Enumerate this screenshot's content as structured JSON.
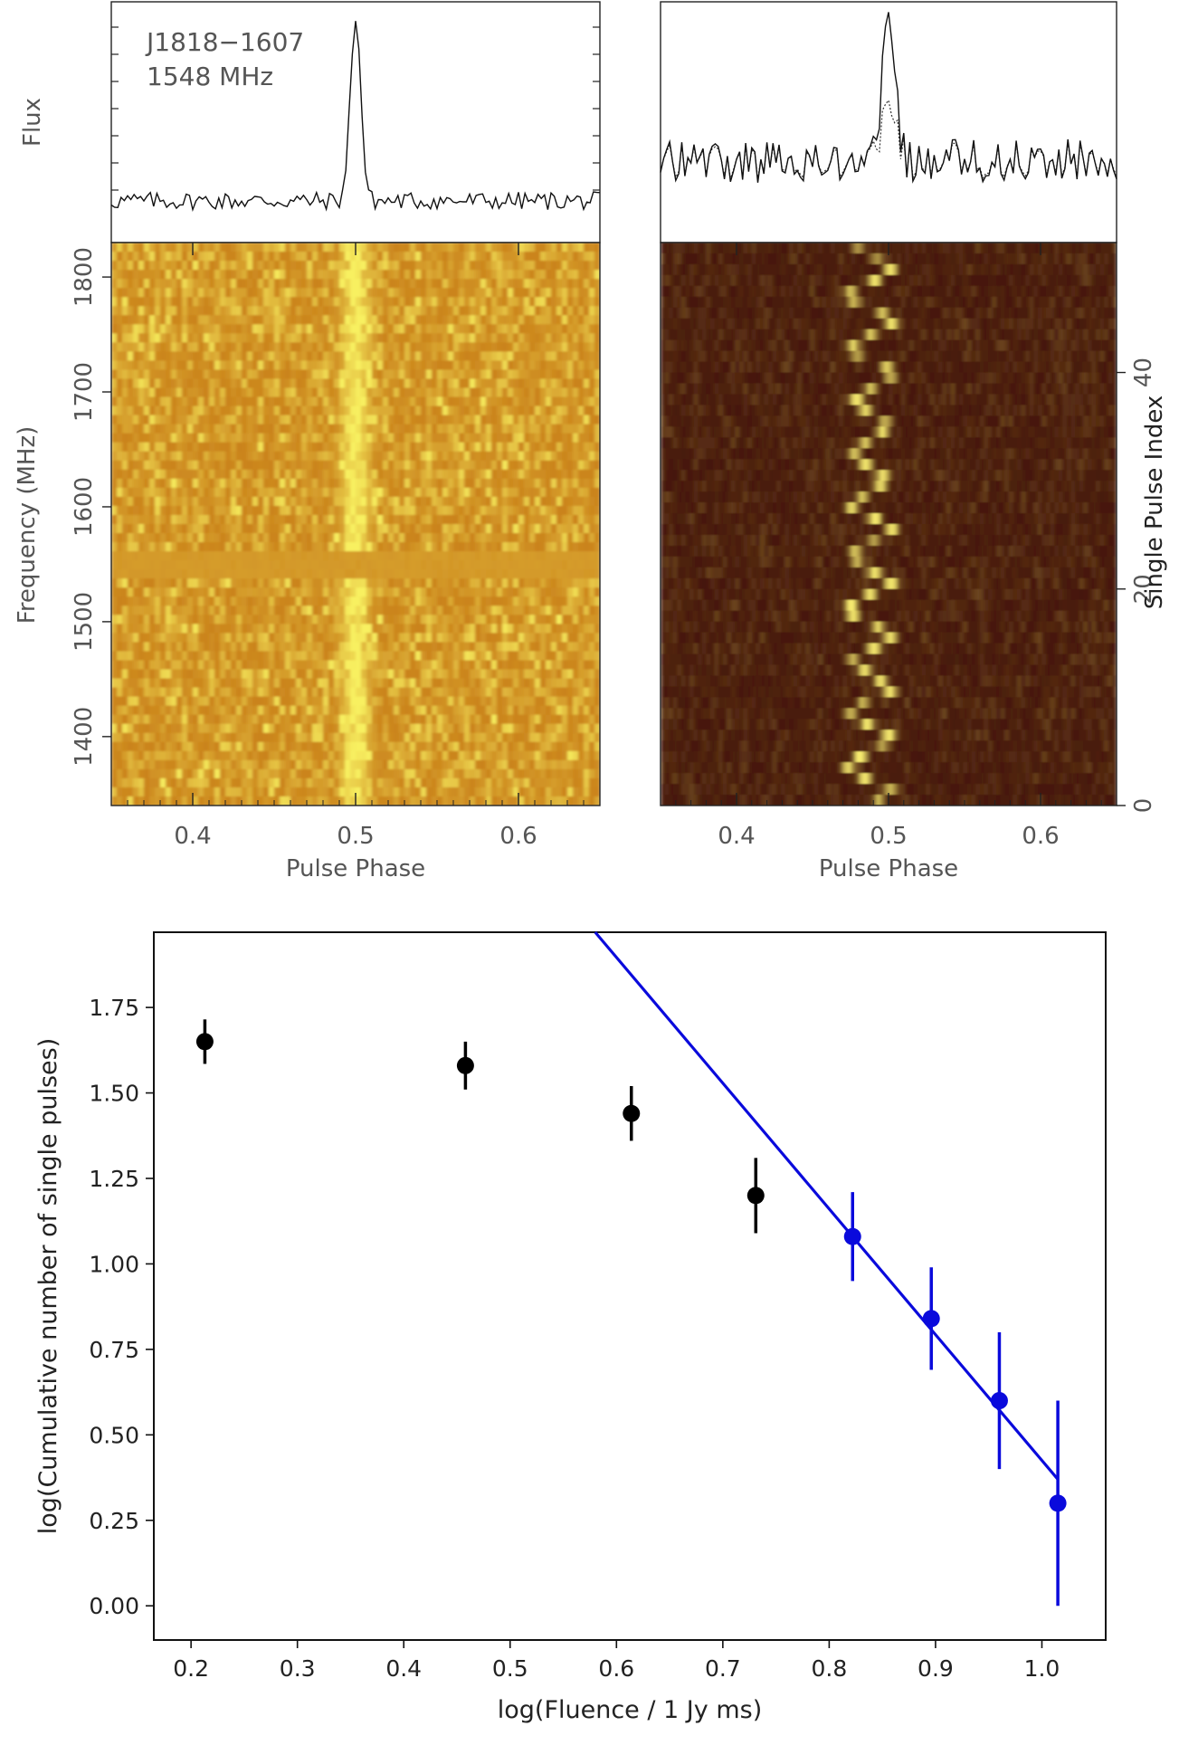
{
  "chart_data": [
    {
      "type": "heatmap",
      "panel": "top-left",
      "annotation": [
        "J1818−1607",
        "1548 MHz"
      ],
      "profile_ylabel": "Flux",
      "xlabel": "Pulse Phase",
      "ylabel": "Frequency (MHz)",
      "xlim": [
        0.35,
        0.65
      ],
      "ylim": [
        1340,
        1830
      ],
      "x_ticks": [
        0.4,
        0.5,
        0.6
      ],
      "x_tick_labels": [
        "0.4",
        "0.5",
        "0.6"
      ],
      "y_ticks": [
        1400,
        1500,
        1600,
        1700,
        1800
      ],
      "y_tick_labels": [
        "1400",
        "1500",
        "1600",
        "1700",
        "1800"
      ],
      "pulse_peak_phase": 0.5,
      "colormap_colors": [
        "#c47412",
        "#f8f060"
      ]
    },
    {
      "type": "heatmap",
      "panel": "top-right",
      "xlabel": "Pulse Phase",
      "ylabel": "Single Pulse Index",
      "xlim": [
        0.35,
        0.65
      ],
      "ylim": [
        0,
        52
      ],
      "x_ticks": [
        0.4,
        0.5,
        0.6
      ],
      "x_tick_labels": [
        "0.4",
        "0.5",
        "0.6"
      ],
      "y_ticks": [
        0,
        20,
        40
      ],
      "y_tick_labels": [
        "0",
        "20",
        "40"
      ],
      "pulse_peak_phase": 0.5,
      "colormap_colors": [
        "#3a0a02",
        "#f8ec70"
      ]
    },
    {
      "type": "scatter",
      "panel": "bottom",
      "xlabel": "log(Fluence / 1 Jy ms)",
      "ylabel": "log(Cumulative number of single pulses)",
      "xlim": [
        0.165,
        1.06
      ],
      "ylim": [
        -0.1,
        1.97
      ],
      "x_ticks": [
        0.2,
        0.3,
        0.4,
        0.5,
        0.6,
        0.7,
        0.8,
        0.9,
        1.0
      ],
      "x_tick_labels": [
        "0.2",
        "0.3",
        "0.4",
        "0.5",
        "0.6",
        "0.7",
        "0.8",
        "0.9",
        "1.0"
      ],
      "y_ticks": [
        0.0,
        0.25,
        0.5,
        0.75,
        1.0,
        1.25,
        1.5,
        1.75
      ],
      "y_tick_labels": [
        "0.00",
        "0.25",
        "0.50",
        "0.75",
        "1.00",
        "1.25",
        "1.50",
        "1.75"
      ],
      "series": [
        {
          "color": "#000000",
          "x": [
            0.213,
            0.458,
            0.614,
            0.731
          ],
          "y": [
            1.65,
            1.58,
            1.44,
            1.2
          ],
          "yerr": [
            0.065,
            0.07,
            0.08,
            0.11
          ]
        },
        {
          "color": "#0a0adc",
          "x": [
            0.822,
            0.896,
            0.96,
            1.015
          ],
          "y": [
            1.08,
            0.84,
            0.6,
            0.3
          ],
          "yerr": [
            0.13,
            0.15,
            0.2,
            0.3
          ]
        }
      ],
      "fit_line": {
        "color": "#0a0adc",
        "x": [
          0.58,
          1.015
        ],
        "y": [
          1.97,
          0.37
        ]
      }
    }
  ]
}
